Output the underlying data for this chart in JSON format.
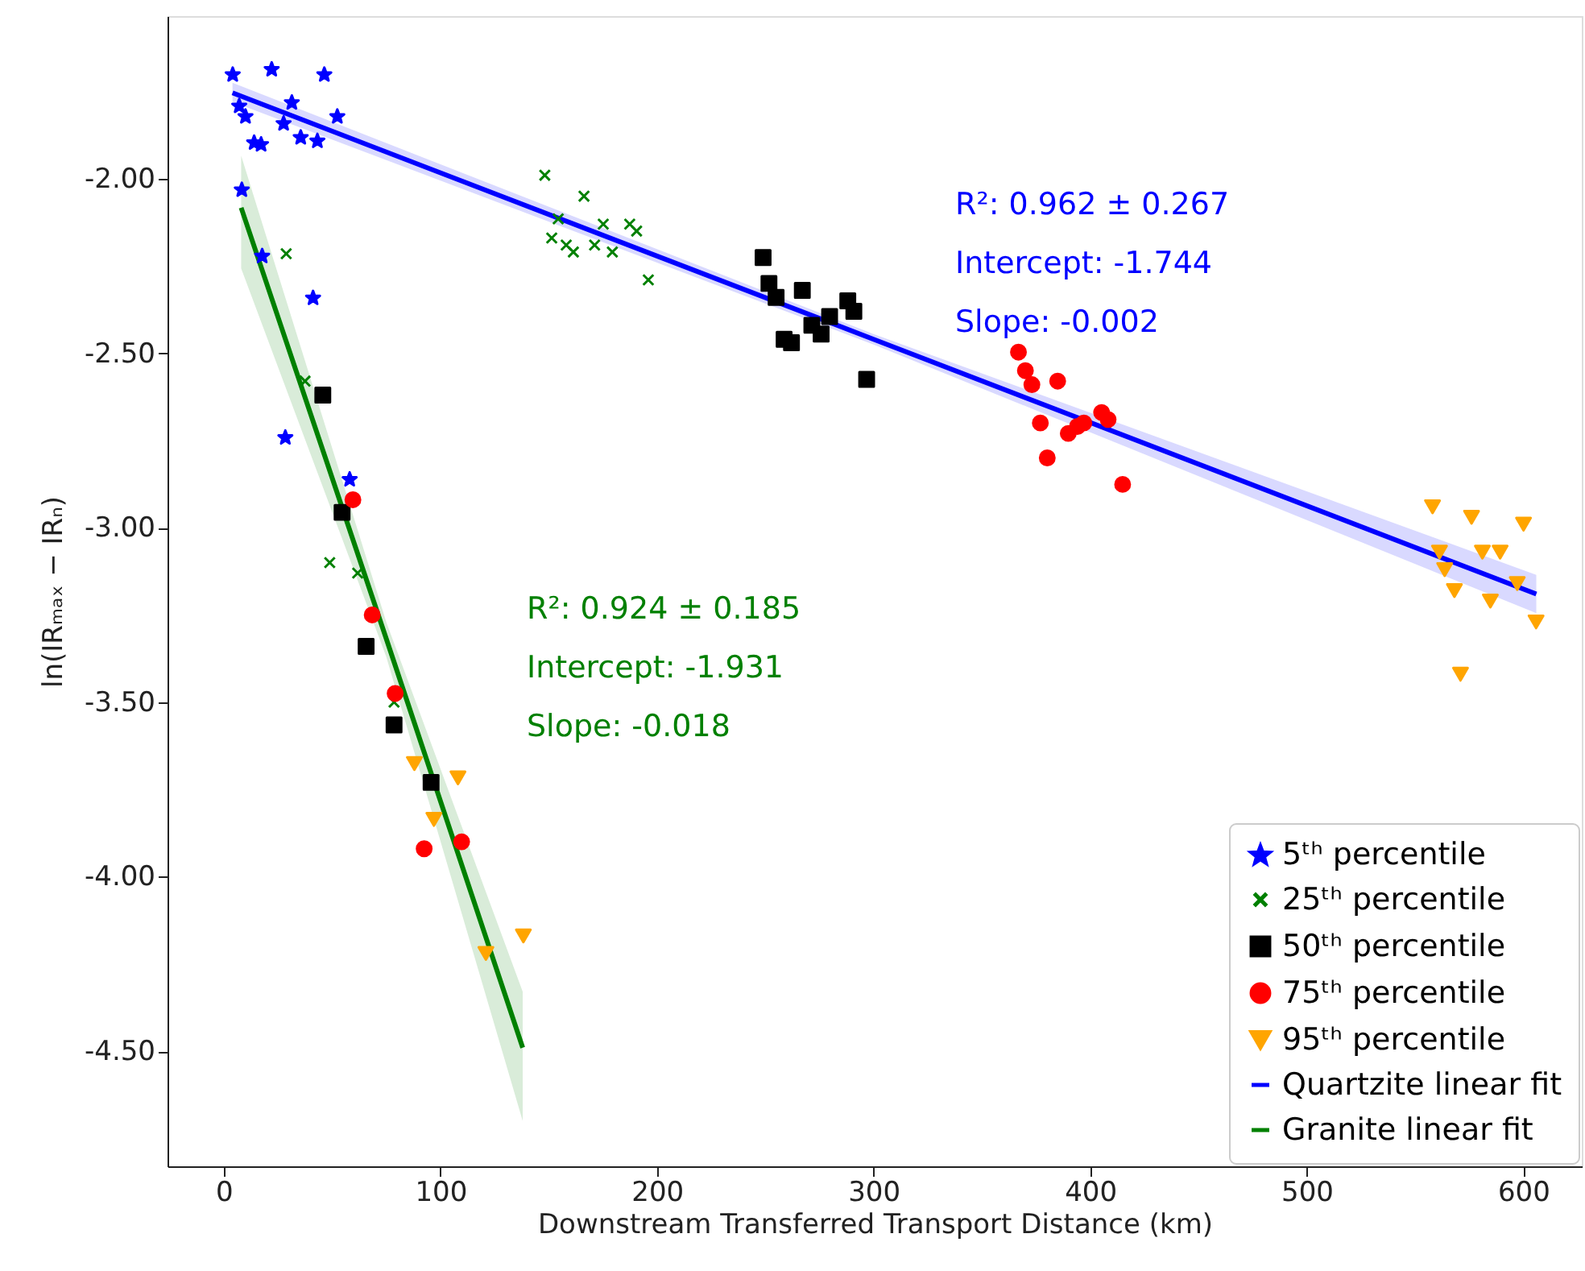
{
  "chart_data": {
    "type": "scatter",
    "xlabel": "Downstream Transferred Transport Distance (km)",
    "ylabel": "ln(IRₘₐₓ − IRₙ)",
    "xlim": [
      -26,
      627
    ],
    "ylim": [
      -4.83,
      -1.534
    ],
    "xticks": [
      0,
      100,
      200,
      300,
      400,
      500,
      600
    ],
    "yticks": [
      {
        "value": -2,
        "label": "-2.00"
      },
      {
        "value": -2.5,
        "label": "-2.50"
      },
      {
        "value": -3,
        "label": "-3.00"
      },
      {
        "value": -3.5,
        "label": "-3.50"
      },
      {
        "value": -4,
        "label": "-4.00"
      },
      {
        "value": -4.5,
        "label": "-4.50"
      }
    ],
    "grid": false,
    "legend": "bottom right",
    "annotations": [
      "R²: 0.962 ± 0.267",
      "Intercept: -1.744",
      "Slope: -0.002",
      "R²: 0.924 ± 0.185",
      "Intercept: -1.931",
      "Slope: -0.018"
    ],
    "series": [
      {
        "name": "5ᵗʰ percentile",
        "type": "scatter",
        "marker": "star",
        "color": "#0000ff",
        "x": [
          4.1,
          22.1,
          46.4,
          7.1,
          10.0,
          31.4,
          27.6,
          52.4,
          14.0,
          17.2,
          35.5,
          43.2,
          8.3,
          17.7,
          41.2,
          28.4,
          58.1
        ],
        "values": [
          -1.7,
          -1.685,
          -1.7,
          -1.79,
          -1.82,
          -1.78,
          -1.84,
          -1.82,
          -1.895,
          -1.9,
          -1.88,
          -1.89,
          -2.03,
          -2.22,
          -2.34,
          -2.74,
          -2.86
        ]
      },
      {
        "name": "25ᵗʰ percentile",
        "type": "scatter",
        "marker": "cross",
        "color": "#008000",
        "x": [
          148.2,
          166.3,
          154.4,
          175.2,
          187.4,
          190.6,
          151.4,
          158.1,
          161.4,
          171.2,
          179.4,
          196.0,
          28.8,
          37.5,
          48.9,
          61.8,
          78.6
        ],
        "values": [
          -1.99,
          -2.05,
          -2.115,
          -2.13,
          -2.13,
          -2.15,
          -2.17,
          -2.19,
          -2.21,
          -2.19,
          -2.21,
          -2.29,
          -2.215,
          -2.58,
          -3.1,
          -3.13,
          -3.5
        ]
      },
      {
        "name": "50ᵗʰ percentile",
        "type": "scatter",
        "marker": "square",
        "color": "#000000",
        "x": [
          249.0,
          251.7,
          255.0,
          267.1,
          288.1,
          290.9,
          279.7,
          271.5,
          275.8,
          258.7,
          262.1,
          296.8,
          45.7,
          54.6,
          65.7,
          78.6,
          95.7
        ],
        "values": [
          -2.226,
          -2.3,
          -2.34,
          -2.32,
          -2.35,
          -2.38,
          -2.395,
          -2.42,
          -2.445,
          -2.46,
          -2.47,
          -2.575,
          -2.62,
          -2.956,
          -3.34,
          -3.565,
          -3.73
        ]
      },
      {
        "name": "75ᵗʰ percentile",
        "type": "scatter",
        "marker": "circle",
        "color": "#ff0000",
        "x": [
          59.6,
          68.5,
          79.1,
          92.5,
          109.8,
          366.9,
          370.1,
          373.1,
          385.0,
          377.0,
          380.2,
          389.9,
          394.1,
          397.1,
          405.3,
          408.3,
          415.0
        ],
        "values": [
          -2.92,
          -3.25,
          -3.475,
          -3.92,
          -3.9,
          -2.497,
          -2.55,
          -2.59,
          -2.58,
          -2.7,
          -2.8,
          -2.73,
          -2.71,
          -2.7,
          -2.67,
          -2.69,
          -2.876
        ]
      },
      {
        "name": "95ᵗʰ percentile",
        "type": "scatter",
        "marker": "triangle",
        "color": "#ffa500",
        "x": [
          88.0,
          108.1,
          97.0,
          138.3,
          121.0,
          558.1,
          576.1,
          600.1,
          561.3,
          563.7,
          581.1,
          589.3,
          597.2,
          568.2,
          584.8,
          605.9,
          571.0
        ],
        "values": [
          -3.676,
          -3.717,
          -3.836,
          -4.17,
          -4.22,
          -2.94,
          -2.97,
          -2.99,
          -3.07,
          -3.12,
          -3.07,
          -3.07,
          -3.16,
          -3.18,
          -3.21,
          -3.27,
          -3.42
        ]
      },
      {
        "name": "Quartzite linear fit",
        "type": "line",
        "color": "#0000ff",
        "x": [
          4,
          300,
          606
        ],
        "values": [
          -1.754,
          -2.46,
          -3.19
        ],
        "lower": [
          -1.78,
          -2.475,
          -3.245
        ],
        "upper": [
          -1.725,
          -2.445,
          -3.135
        ]
      },
      {
        "name": "Granite linear fit",
        "type": "line",
        "color": "#008000",
        "x": [
          8,
          75,
          138
        ],
        "values": [
          -2.083,
          -3.318,
          -4.49
        ],
        "lower": [
          -2.257,
          -3.37,
          -4.7
        ],
        "upper": [
          -1.934,
          -3.27,
          -4.33
        ]
      }
    ]
  }
}
